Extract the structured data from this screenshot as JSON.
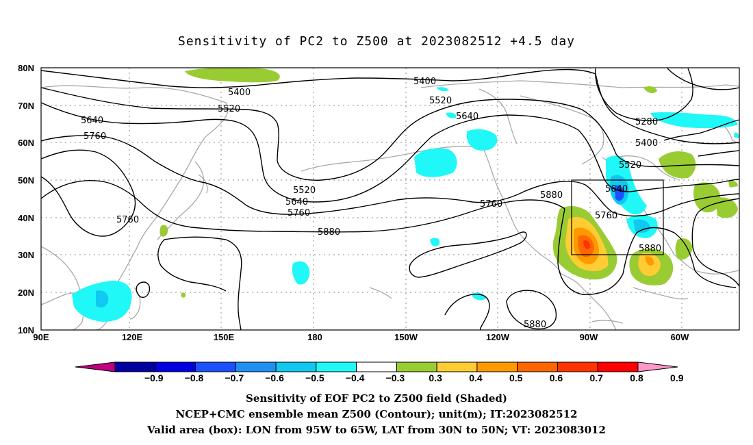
{
  "title": "Sensitivity of PC2 to Z500 at 2023082512 +4.5 day",
  "lat_labels": [
    "80N",
    "70N",
    "60N",
    "50N",
    "40N",
    "30N",
    "20N",
    "10N"
  ],
  "lon_labels": [
    "90E",
    "120E",
    "150E",
    "180",
    "150W",
    "120W",
    "90W",
    "60W"
  ],
  "contour_labels": {
    "c5400a": "5400",
    "c5400b": "5400",
    "c5400c": "5400",
    "c5520a": "5520",
    "c5520b": "5520",
    "c5520c": "5520",
    "c5520d": "5520",
    "c5640a": "5640",
    "c5640b": "5640",
    "c5640c": "5640",
    "c5640d": "5640",
    "c5760a": "5760",
    "c5760b": "5760",
    "c5760c": "5760",
    "c5760d": "5760",
    "c5760e": "5760",
    "c5880a": "5880",
    "c5880b": "5880",
    "c5880c": "5880",
    "c5880d": "5880",
    "c5280": "5280"
  },
  "colorbar": {
    "labels": [
      "−0.9",
      "−0.8",
      "−0.7",
      "−0.6",
      "−0.5",
      "−0.4",
      "−0.3",
      "0.3",
      "0.4",
      "0.5",
      "0.6",
      "0.7",
      "0.8",
      "0.9"
    ],
    "colors": [
      "#c00080",
      "#0000a0",
      "#0000e0",
      "#1a50ff",
      "#2090f0",
      "#10c8f0",
      "#20f8f8",
      "#ffffff",
      "#99cc33",
      "#ffcc33",
      "#ff9900",
      "#ff6600",
      "#ff3300",
      "#ff0000",
      "#ff99cc"
    ]
  },
  "captions": {
    "line1": "Sensitivity of EOF PC2 to Z500 field (Shaded)",
    "line2": "NCEP+CMC ensemble mean Z500 (Contour); unit(m); IT:2023082512",
    "line3": "Valid area (box): LON from 95W to 65W, LAT from 30N to 50N; VT: 2023083012"
  }
}
